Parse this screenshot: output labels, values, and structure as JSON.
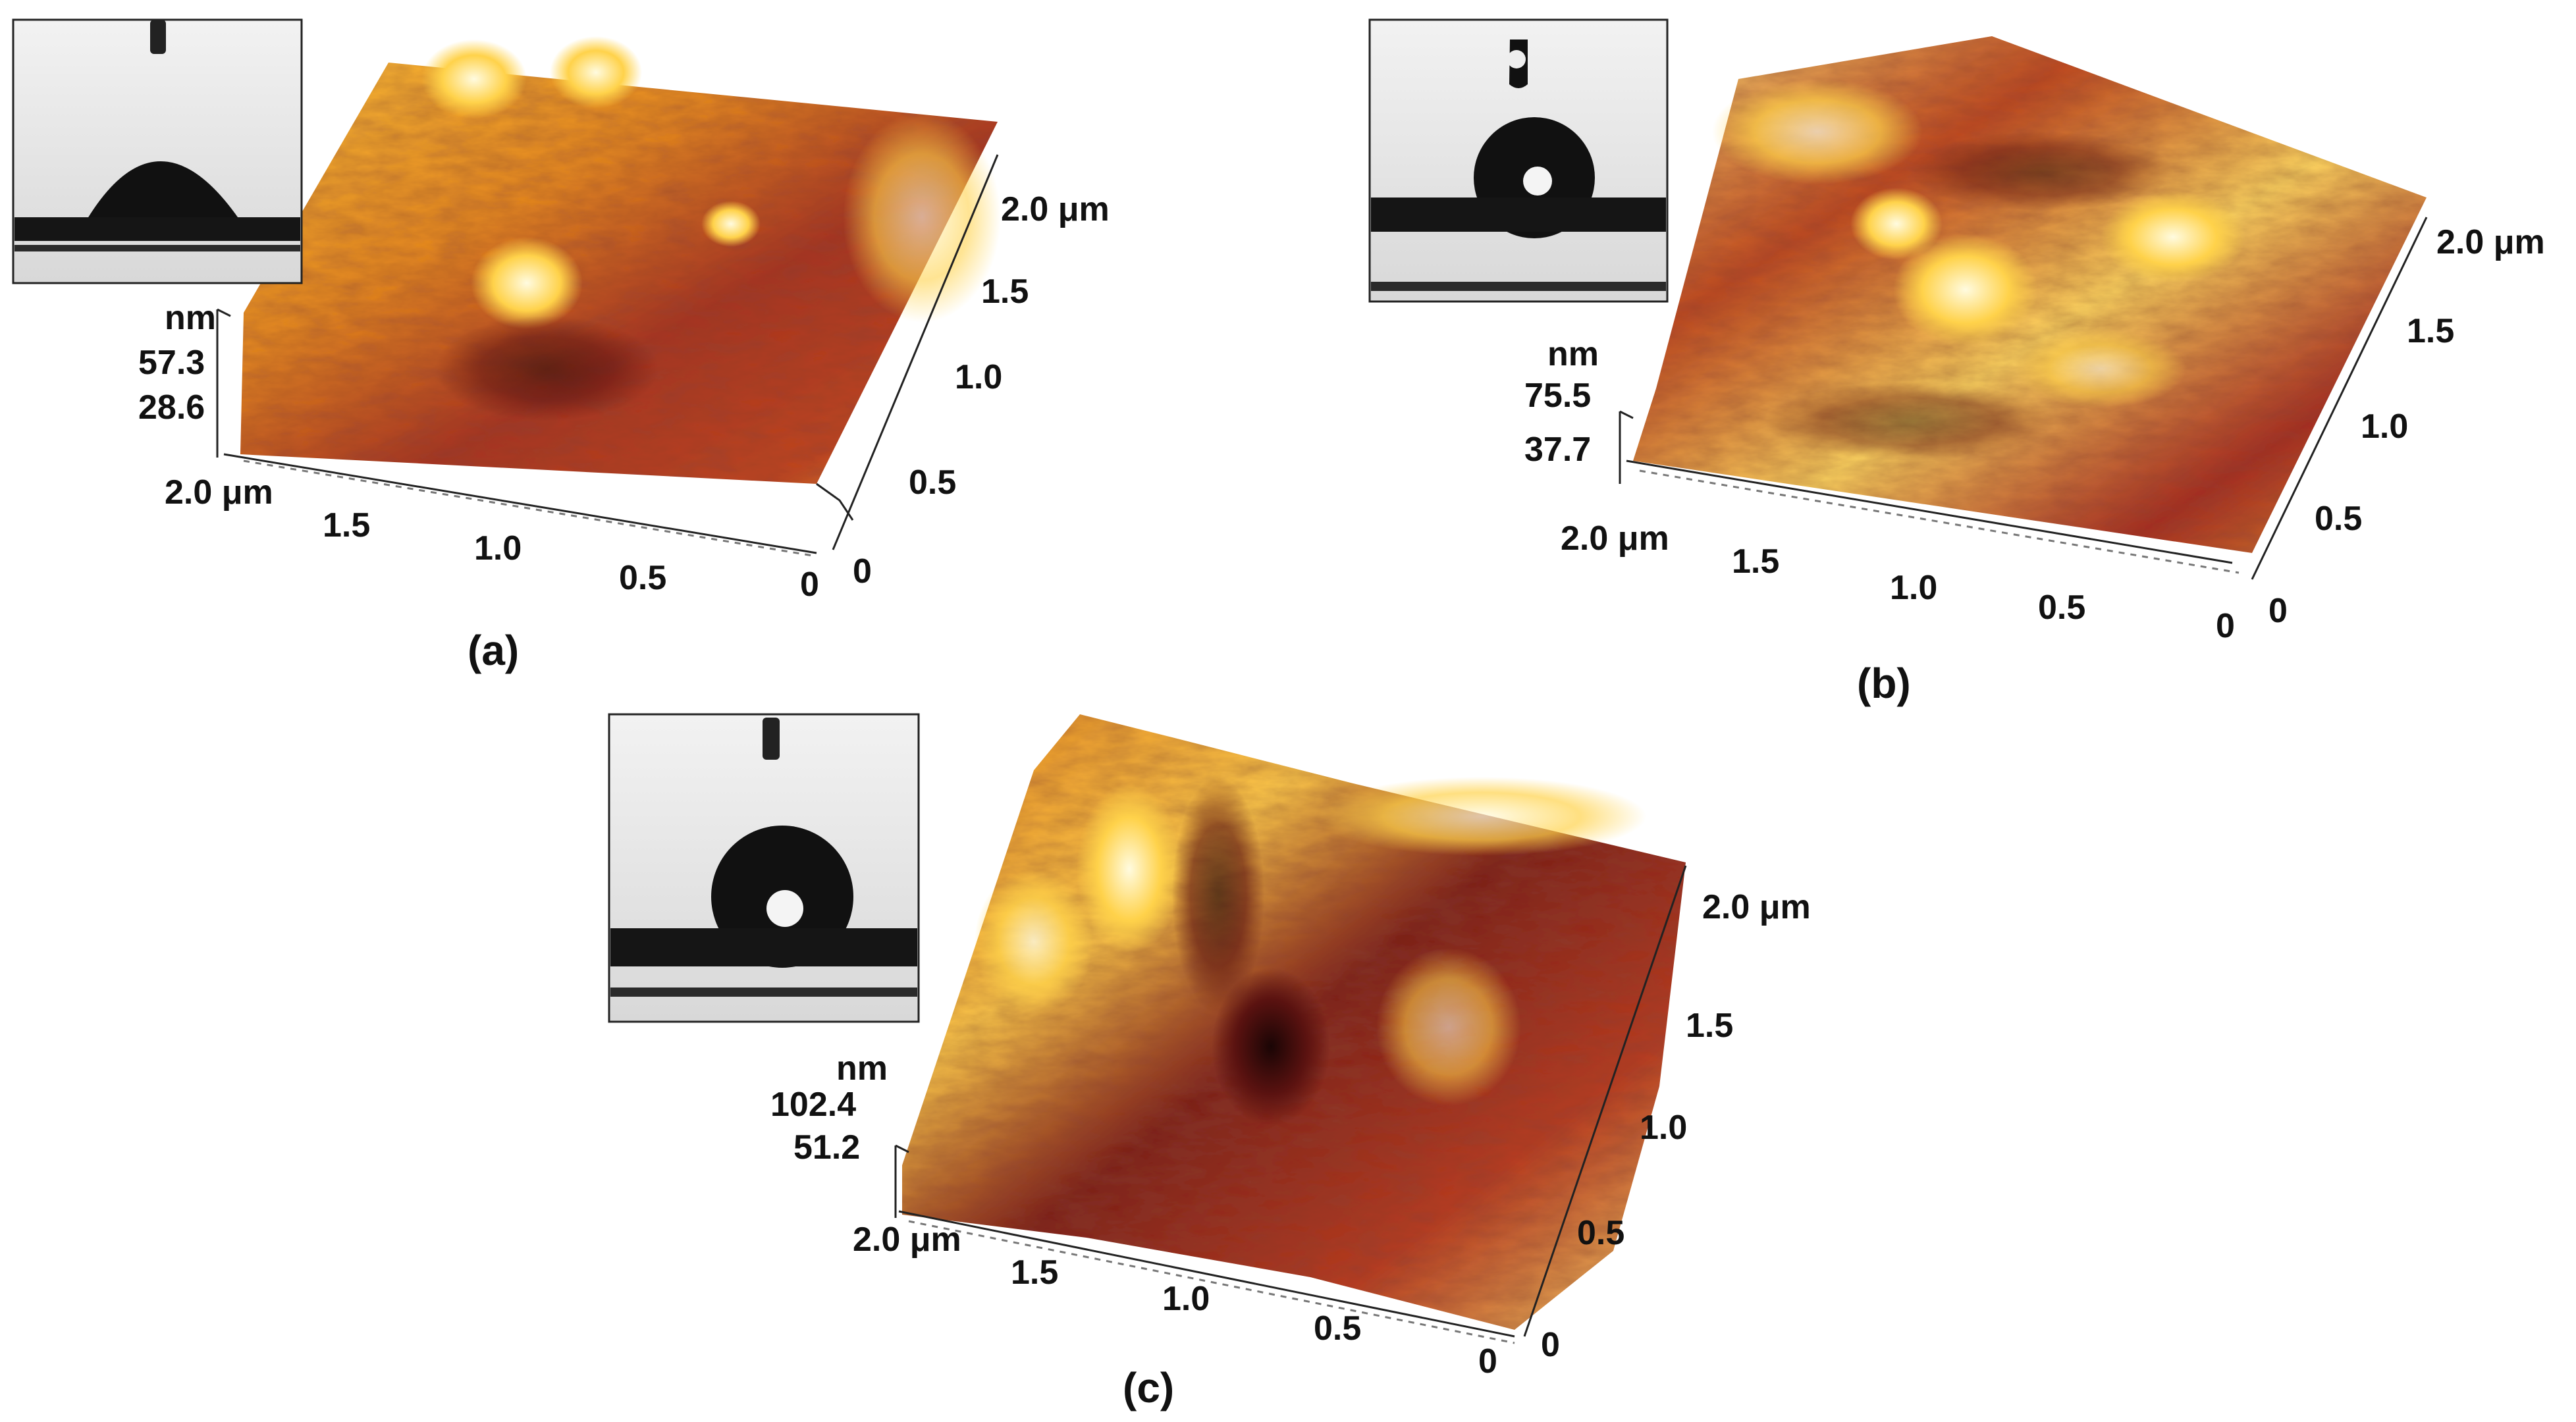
{
  "panels": [
    {
      "id": "a",
      "label": "(a)",
      "z_unit": "nm",
      "z_ticks": [
        "57.3",
        "28.6"
      ],
      "x_ticks": [
        "2.0 μm",
        "1.5",
        "1.0",
        "0.5",
        "0"
      ],
      "y_ticks": [
        "0",
        "0.5",
        "1.0",
        "1.5",
        "2.0 μm"
      ],
      "droplet": "spread"
    },
    {
      "id": "b",
      "label": "(b)",
      "z_unit": "nm",
      "z_ticks": [
        "75.5",
        "37.7"
      ],
      "x_ticks": [
        "2.0 μm",
        "1.5",
        "1.0",
        "0.5",
        "0"
      ],
      "y_ticks": [
        "0",
        "0.5",
        "1.0",
        "1.5",
        "2.0 μm"
      ],
      "droplet": "ball"
    },
    {
      "id": "c",
      "label": "(c)",
      "z_unit": "nm",
      "z_ticks": [
        "102.4",
        "51.2"
      ],
      "x_ticks": [
        "2.0 μm",
        "1.5",
        "1.0",
        "0.5",
        "0"
      ],
      "y_ticks": [
        "0",
        "0.5",
        "1.0",
        "1.5",
        "2.0 μm"
      ],
      "droplet": "ball"
    }
  ],
  "colors": {
    "dark": "#3a0a08",
    "red": "#9a2418",
    "orange": "#e07a10",
    "yellow": "#ffd24a",
    "highlight": "#fff6c8"
  }
}
